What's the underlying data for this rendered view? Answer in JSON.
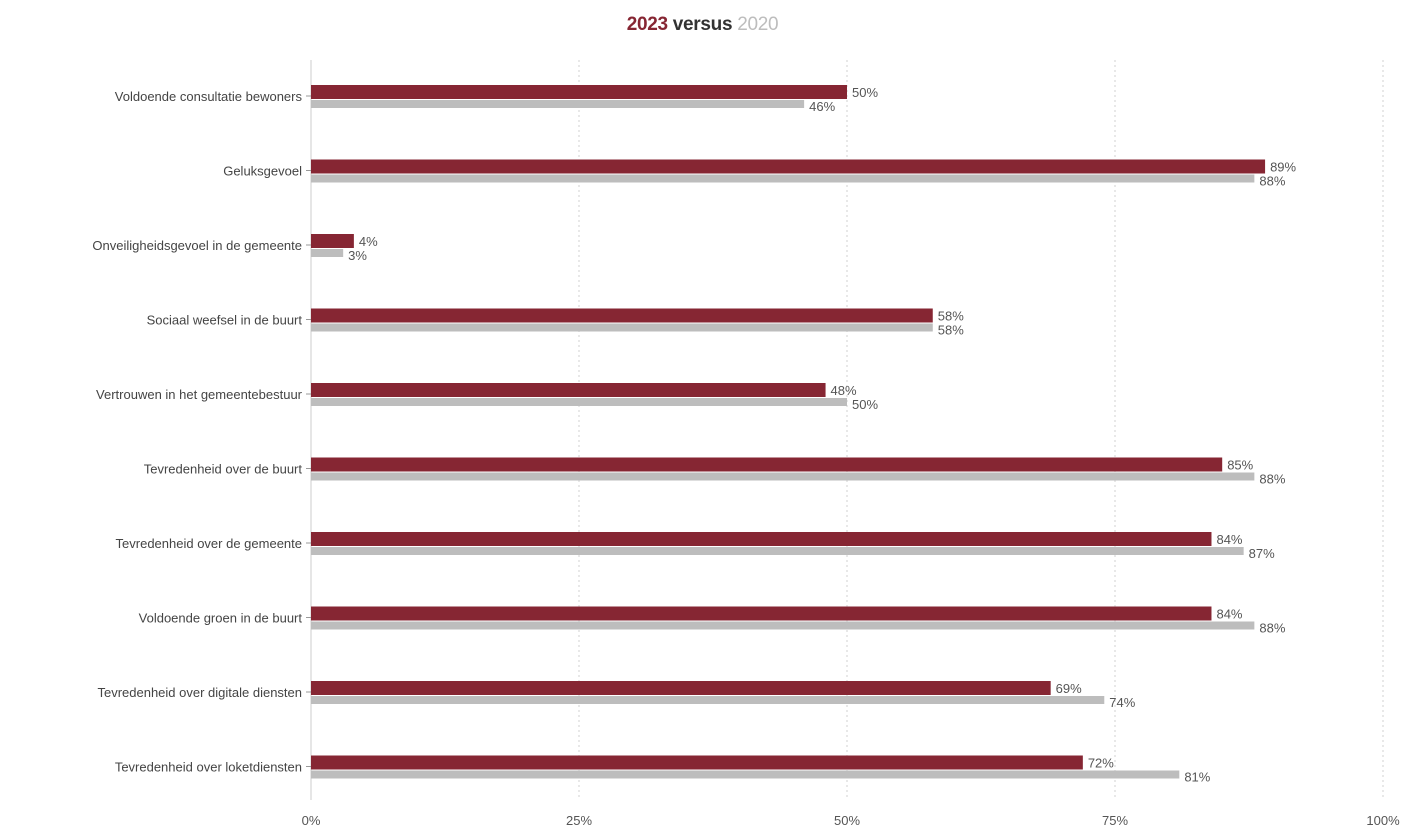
{
  "chart_data": {
    "type": "bar",
    "orientation": "horizontal",
    "title_parts": {
      "year_a": "2023",
      "connector": "versus",
      "year_b": "2020"
    },
    "categories": [
      "Voldoende consultatie bewoners",
      "Geluksgevoel",
      "Onveiligheidsgevoel in de gemeente",
      "Sociaal weefsel in de buurt",
      "Vertrouwen in het gemeentebestuur",
      "Tevredenheid over de buurt",
      "Tevredenheid over de gemeente",
      "Voldoende groen in de buurt",
      "Tevredenheid over digitale diensten",
      "Tevredenheid over loketdiensten"
    ],
    "series": [
      {
        "name": "2023",
        "color": "#862633",
        "values": [
          50,
          89,
          4,
          58,
          48,
          85,
          84,
          84,
          69,
          72
        ],
        "labels": [
          "50%",
          "89%",
          "4%",
          "58%",
          "48%",
          "85%",
          "84%",
          "84%",
          "69%",
          "72%"
        ]
      },
      {
        "name": "2020",
        "color": "#bdbdbd",
        "values": [
          46,
          88,
          3,
          58,
          50,
          88,
          87,
          88,
          74,
          81
        ],
        "labels": [
          "46%",
          "88%",
          "3%",
          "58%",
          "50%",
          "88%",
          "87%",
          "88%",
          "74%",
          "81%"
        ]
      }
    ],
    "xlim": [
      0,
      100
    ],
    "xticks": [
      0,
      25,
      50,
      75,
      100
    ],
    "xtick_labels": [
      "0%",
      "25%",
      "50%",
      "75%",
      "100%"
    ],
    "grid": "vertical-dotted",
    "legend": "none"
  }
}
